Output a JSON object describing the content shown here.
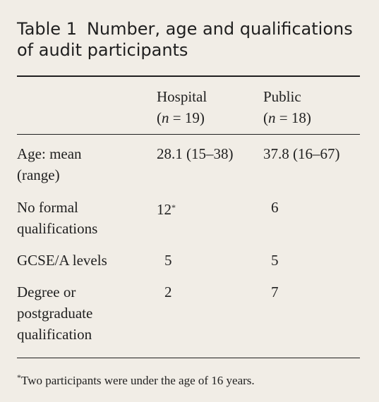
{
  "table": {
    "title_number": "Table 1",
    "title_line1": "Number, age and qualifications",
    "title_line2": "of audit participants",
    "headers": [
      {
        "name": "Hospital",
        "n_label": "n",
        "n_value": "19"
      },
      {
        "name": "Public",
        "n_label": "n",
        "n_value": "18"
      }
    ],
    "rows": [
      {
        "label_lines": [
          "Age: mean",
          "(range)"
        ],
        "hospital": "28.1 (15–38)",
        "public": "37.8 (16–67)"
      },
      {
        "label_lines": [
          "No formal",
          "qualifications"
        ],
        "hospital": "12",
        "hospital_mark": "*",
        "public": "6"
      },
      {
        "label_lines": [
          "GCSE/A levels"
        ],
        "hospital": "5",
        "public": "5"
      },
      {
        "label_lines": [
          "Degree or",
          "postgraduate",
          "qualification"
        ],
        "hospital": "2",
        "public": "7"
      }
    ],
    "footnote_mark": "*",
    "footnote": "Two participants were under the age of 16 years."
  }
}
